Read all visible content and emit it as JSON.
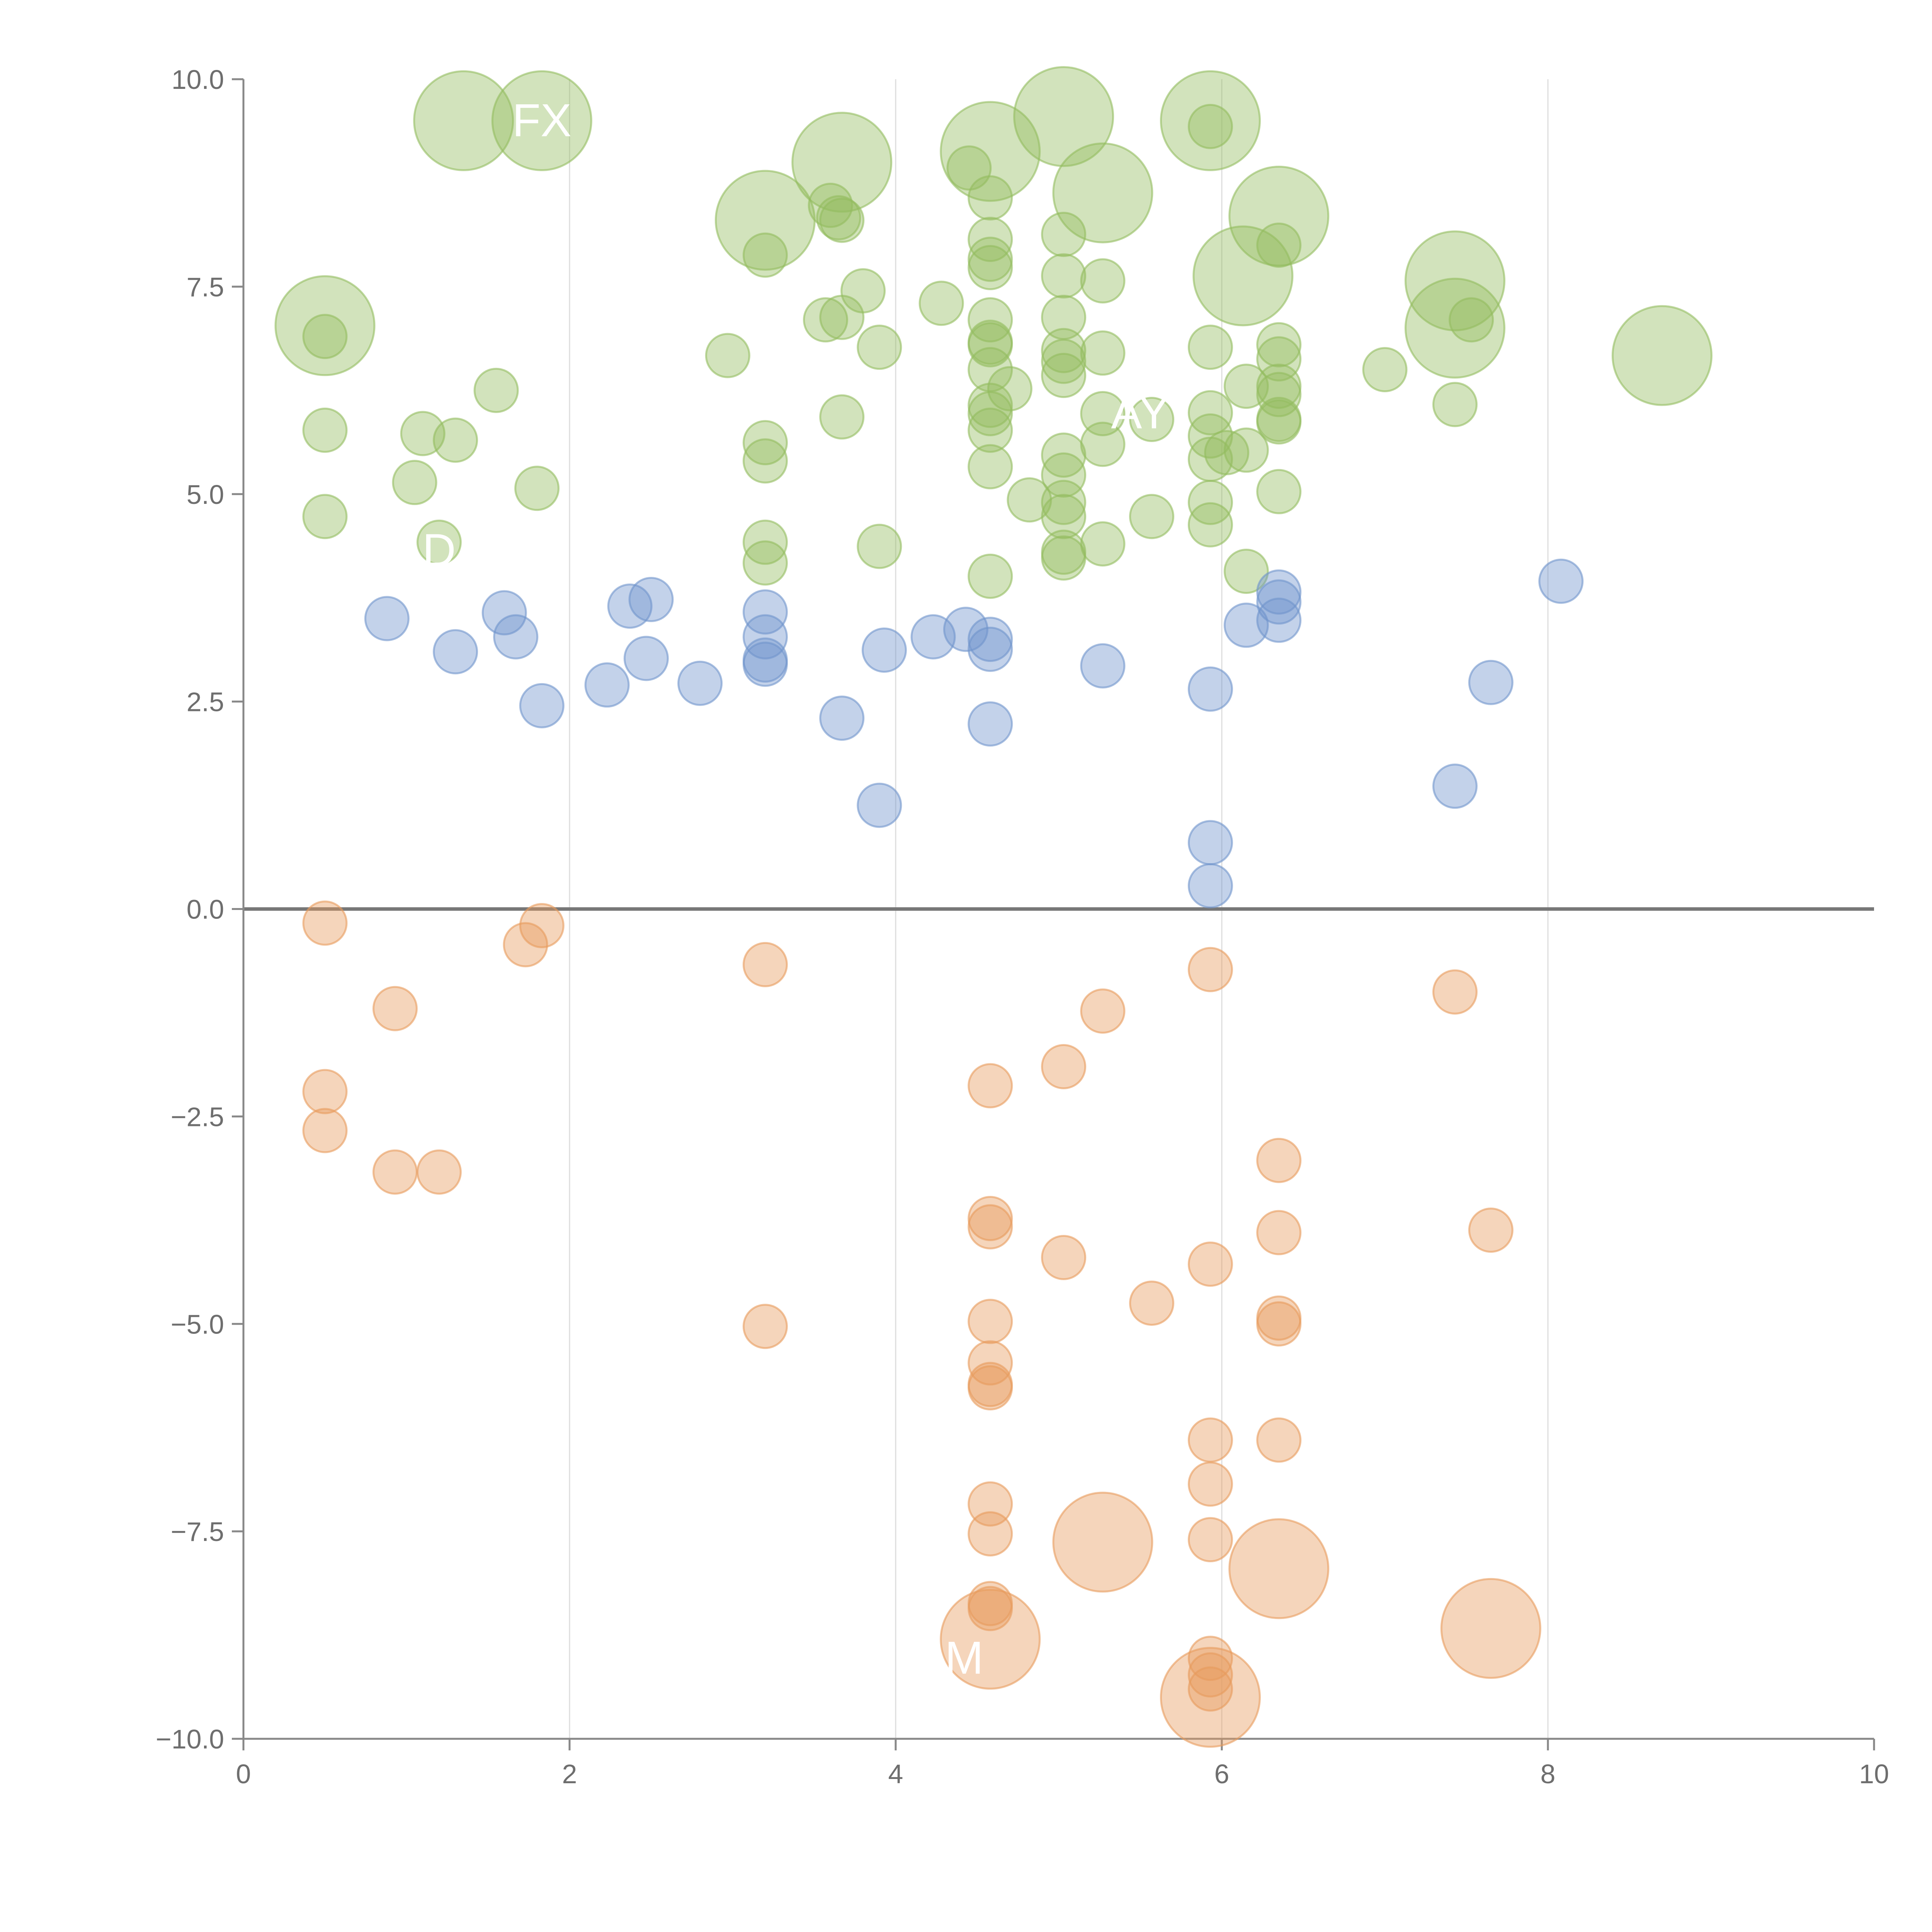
{
  "chart_data": {
    "type": "scatter",
    "title": "",
    "xlabel": "",
    "ylabel": "",
    "xlim": [
      0,
      10
    ],
    "ylim": [
      -10,
      10
    ],
    "x_ticks": [
      "0",
      "2",
      "4",
      "6",
      "8",
      "10"
    ],
    "y_ticks": [
      "10.0",
      "7.5",
      "5.0",
      "2.5",
      "0.0",
      "−2.5",
      "−5.0",
      "−7.5",
      "−10.0"
    ],
    "grid": "vertical lines at x ticks",
    "zero_line": true,
    "colors": {
      "green": "#93bc5f",
      "blue": "#6f94cc",
      "orange": "#e89b5c",
      "axis": "#888888",
      "grid": "#dddddd",
      "zero": "#777777"
    },
    "series": [
      {
        "color": "green",
        "points": [
          [
            0.5,
            6.9
          ],
          [
            0.5,
            5.77
          ],
          [
            0.5,
            4.73
          ],
          [
            1.05,
            5.14
          ],
          [
            1.1,
            5.73
          ],
          [
            1.3,
            5.65
          ],
          [
            1.55,
            6.25
          ],
          [
            1.8,
            5.07
          ],
          [
            1.2,
            4.42
          ],
          [
            2.97,
            6.67
          ],
          [
            3.2,
            7.88
          ],
          [
            3.2,
            5.62
          ],
          [
            3.2,
            5.4
          ],
          [
            3.2,
            4.42
          ],
          [
            3.2,
            4.17
          ],
          [
            3.57,
            7.1
          ],
          [
            3.6,
            8.48
          ],
          [
            3.65,
            8.33
          ],
          [
            3.67,
            8.3
          ],
          [
            3.67,
            5.93
          ],
          [
            3.67,
            7.13
          ],
          [
            3.8,
            7.45
          ],
          [
            3.9,
            6.77
          ],
          [
            3.9,
            4.37
          ],
          [
            4.28,
            7.3
          ],
          [
            4.45,
            8.93
          ],
          [
            4.58,
            8.57
          ],
          [
            4.58,
            8.07
          ],
          [
            4.58,
            7.83
          ],
          [
            4.58,
            7.73
          ],
          [
            4.58,
            7.1
          ],
          [
            4.58,
            6.83
          ],
          [
            4.58,
            6.8
          ],
          [
            4.58,
            6.5
          ],
          [
            4.58,
            6.07
          ],
          [
            4.58,
            5.97
          ],
          [
            4.58,
            5.77
          ],
          [
            4.58,
            5.33
          ],
          [
            4.58,
            4.01
          ],
          [
            4.7,
            6.27
          ],
          [
            4.82,
            4.93
          ],
          [
            5.03,
            8.13
          ],
          [
            5.03,
            7.63
          ],
          [
            5.03,
            7.13
          ],
          [
            5.03,
            6.73
          ],
          [
            5.03,
            6.6
          ],
          [
            5.03,
            6.43
          ],
          [
            5.03,
            5.47
          ],
          [
            5.03,
            5.23
          ],
          [
            5.03,
            4.9
          ],
          [
            5.03,
            4.73
          ],
          [
            5.03,
            4.3
          ],
          [
            5.03,
            4.23
          ],
          [
            5.27,
            7.57
          ],
          [
            5.27,
            6.7
          ],
          [
            5.27,
            5.97
          ],
          [
            5.27,
            5.6
          ],
          [
            5.27,
            4.4
          ],
          [
            5.57,
            5.9
          ],
          [
            5.57,
            4.73
          ],
          [
            5.93,
            9.43
          ],
          [
            5.93,
            6.77
          ],
          [
            5.93,
            5.98
          ],
          [
            5.93,
            5.7
          ],
          [
            5.93,
            5.42
          ],
          [
            5.93,
            4.9
          ],
          [
            5.93,
            4.63
          ],
          [
            6.03,
            5.5
          ],
          [
            6.15,
            6.3
          ],
          [
            6.15,
            5.53
          ],
          [
            6.15,
            4.07
          ],
          [
            6.35,
            8.0
          ],
          [
            6.35,
            6.8
          ],
          [
            6.35,
            6.63
          ],
          [
            6.35,
            6.3
          ],
          [
            6.35,
            6.2
          ],
          [
            6.35,
            5.9
          ],
          [
            6.35,
            5.87
          ],
          [
            6.35,
            5.03
          ],
          [
            7.0,
            6.5
          ],
          [
            7.43,
            6.08
          ],
          [
            7.53,
            7.1
          ]
        ]
      },
      {
        "color": "green",
        "size": "large",
        "points": [
          [
            0.5,
            7.03
          ],
          [
            1.35,
            9.5
          ],
          [
            1.83,
            9.5
          ],
          [
            3.2,
            8.3
          ],
          [
            3.67,
            9.0
          ],
          [
            4.58,
            9.13
          ],
          [
            5.03,
            9.55
          ],
          [
            5.27,
            8.63
          ],
          [
            5.93,
            9.5
          ],
          [
            6.13,
            7.63
          ],
          [
            6.35,
            8.35
          ],
          [
            7.43,
            7.57
          ],
          [
            7.43,
            7.0
          ],
          [
            8.7,
            6.67
          ]
        ]
      },
      {
        "color": "blue",
        "points": [
          [
            0.88,
            3.5
          ],
          [
            1.3,
            3.1
          ],
          [
            1.6,
            3.57
          ],
          [
            1.67,
            3.28
          ],
          [
            1.83,
            2.45
          ],
          [
            2.23,
            2.7
          ],
          [
            2.37,
            3.65
          ],
          [
            2.47,
            3.02
          ],
          [
            2.5,
            3.73
          ],
          [
            2.8,
            2.72
          ],
          [
            3.2,
            3.58
          ],
          [
            3.2,
            3.28
          ],
          [
            3.2,
            3.0
          ],
          [
            3.2,
            2.95
          ],
          [
            3.67,
            2.3
          ],
          [
            3.9,
            1.25
          ],
          [
            3.93,
            3.12
          ],
          [
            4.23,
            3.28
          ],
          [
            4.43,
            3.37
          ],
          [
            4.58,
            3.25
          ],
          [
            4.58,
            3.13
          ],
          [
            4.58,
            2.23
          ],
          [
            5.27,
            2.93
          ],
          [
            5.93,
            2.65
          ],
          [
            5.93,
            0.8
          ],
          [
            5.93,
            0.28
          ],
          [
            6.15,
            3.42
          ],
          [
            6.35,
            3.82
          ],
          [
            6.35,
            3.7
          ],
          [
            6.35,
            3.48
          ],
          [
            7.43,
            1.48
          ],
          [
            7.65,
            2.73
          ],
          [
            8.08,
            3.95
          ]
        ]
      },
      {
        "color": "orange",
        "points": [
          [
            0.5,
            -0.17
          ],
          [
            0.5,
            -2.2
          ],
          [
            0.5,
            -2.67
          ],
          [
            0.93,
            -1.2
          ],
          [
            0.93,
            -3.17
          ],
          [
            1.2,
            -3.17
          ],
          [
            1.73,
            -0.43
          ],
          [
            1.83,
            -0.2
          ],
          [
            3.2,
            -0.67
          ],
          [
            3.2,
            -5.03
          ],
          [
            4.58,
            -2.13
          ],
          [
            4.58,
            -3.73
          ],
          [
            4.58,
            -3.83
          ],
          [
            4.58,
            -4.97
          ],
          [
            4.58,
            -5.47
          ],
          [
            4.58,
            -5.73
          ],
          [
            4.58,
            -5.77
          ],
          [
            4.58,
            -7.17
          ],
          [
            4.58,
            -7.53
          ],
          [
            4.58,
            -8.37
          ],
          [
            4.58,
            -8.43
          ],
          [
            5.03,
            -1.9
          ],
          [
            5.03,
            -4.2
          ],
          [
            5.27,
            -1.23
          ],
          [
            5.57,
            -4.75
          ],
          [
            5.93,
            -0.73
          ],
          [
            5.93,
            -4.28
          ],
          [
            5.93,
            -6.4
          ],
          [
            5.93,
            -6.93
          ],
          [
            5.93,
            -7.6
          ],
          [
            5.93,
            -9.03
          ],
          [
            5.93,
            -9.23
          ],
          [
            5.93,
            -9.4
          ],
          [
            6.35,
            -3.03
          ],
          [
            6.35,
            -3.9
          ],
          [
            6.35,
            -4.93
          ],
          [
            6.35,
            -5.0
          ],
          [
            6.35,
            -6.4
          ],
          [
            7.43,
            -1.0
          ],
          [
            7.65,
            -3.87
          ]
        ]
      },
      {
        "color": "orange",
        "size": "large",
        "points": [
          [
            4.58,
            -8.8
          ],
          [
            5.27,
            -7.63
          ],
          [
            5.93,
            -9.5
          ],
          [
            6.35,
            -7.95
          ],
          [
            7.65,
            -8.67
          ]
        ]
      }
    ],
    "point_labels": [
      {
        "text": "FX",
        "x": 1.83,
        "y": 9.5
      },
      {
        "text": "AY",
        "x": 5.5,
        "y": 5.98
      },
      {
        "text": "M",
        "x": 4.42,
        "y": -9.03
      },
      {
        "text": "D",
        "x": 1.2,
        "y": 4.32
      }
    ]
  }
}
